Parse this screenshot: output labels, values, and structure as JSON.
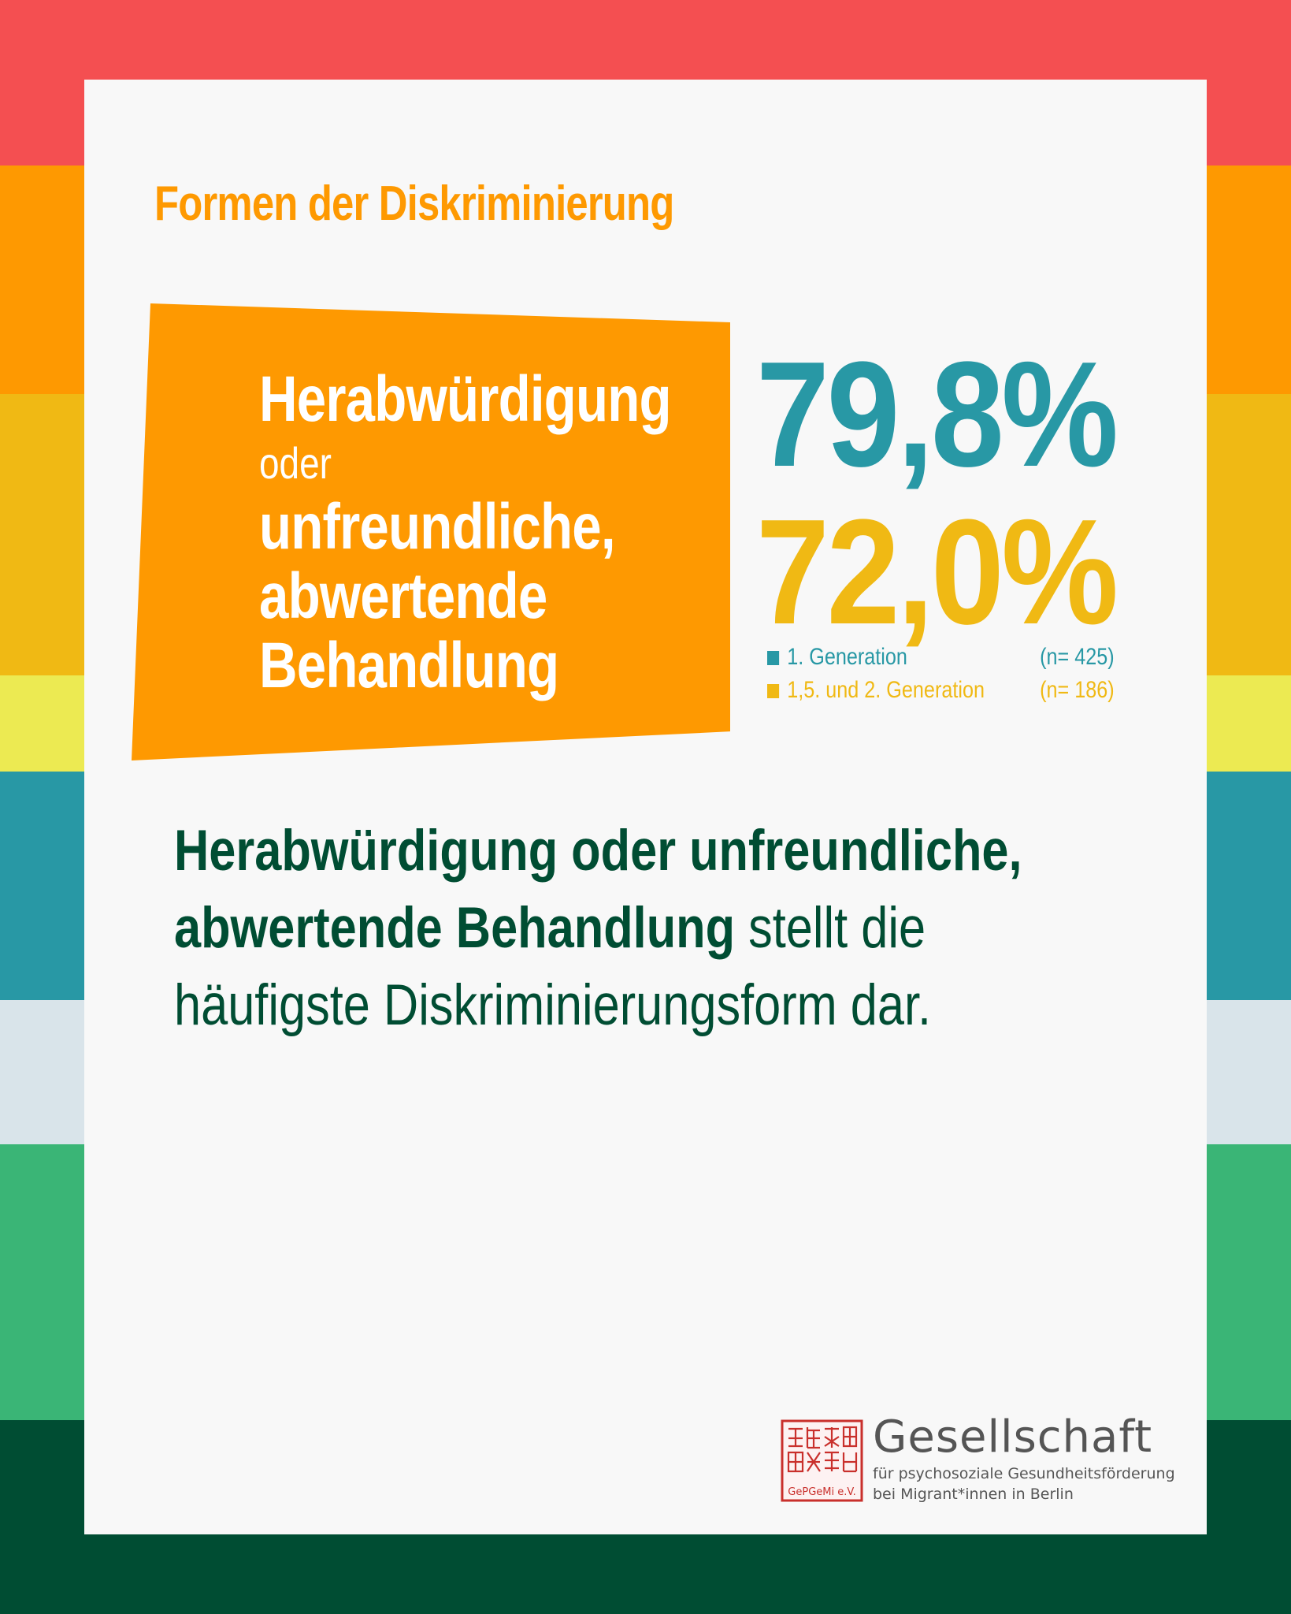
{
  "colors": {
    "stripes": [
      "#f44f51",
      "#fe9901",
      "#f0b914",
      "#ecea52",
      "#2898a5",
      "#d9e4ea",
      "#3ab576",
      "#004d33"
    ],
    "card_bg": "#f8f8f8",
    "orange": "#fe9901",
    "teal": "#2898a5",
    "yellow": "#f0b914",
    "dark_green": "#004d33",
    "seal_red": "#c9302c",
    "logo_gray": "#555555"
  },
  "heading": "Formen der Diskriminierung",
  "tile": {
    "line1": "Herabwürdigung",
    "line2": "oder",
    "line3": "unfreundliche,",
    "line4": "abwertende",
    "line5": "Behandlung"
  },
  "stats": {
    "first": {
      "value": "79,8%",
      "color": "teal"
    },
    "second": {
      "value": "72,0%",
      "color": "yellow"
    }
  },
  "legend": [
    {
      "label": "1.  Generation",
      "n": "(n= 425)",
      "color": "teal"
    },
    {
      "label": "1,5. und 2.  Generation",
      "n": "(n= 186)",
      "color": "yellow"
    }
  ],
  "statement": {
    "bold": "Herabwürdigung oder unfreundliche, abwertende Behandlung",
    "rest": " stellt die häufigste Diskriminierungsform dar."
  },
  "logo": {
    "seal_icon": "chinese-seal-icon",
    "seal_text": "GePGeMi e.V.",
    "name": "Gesellschaft",
    "sub1": "für psychosoziale Gesundheitsförderung",
    "sub2": "bei Migrant*innen in Berlin"
  }
}
